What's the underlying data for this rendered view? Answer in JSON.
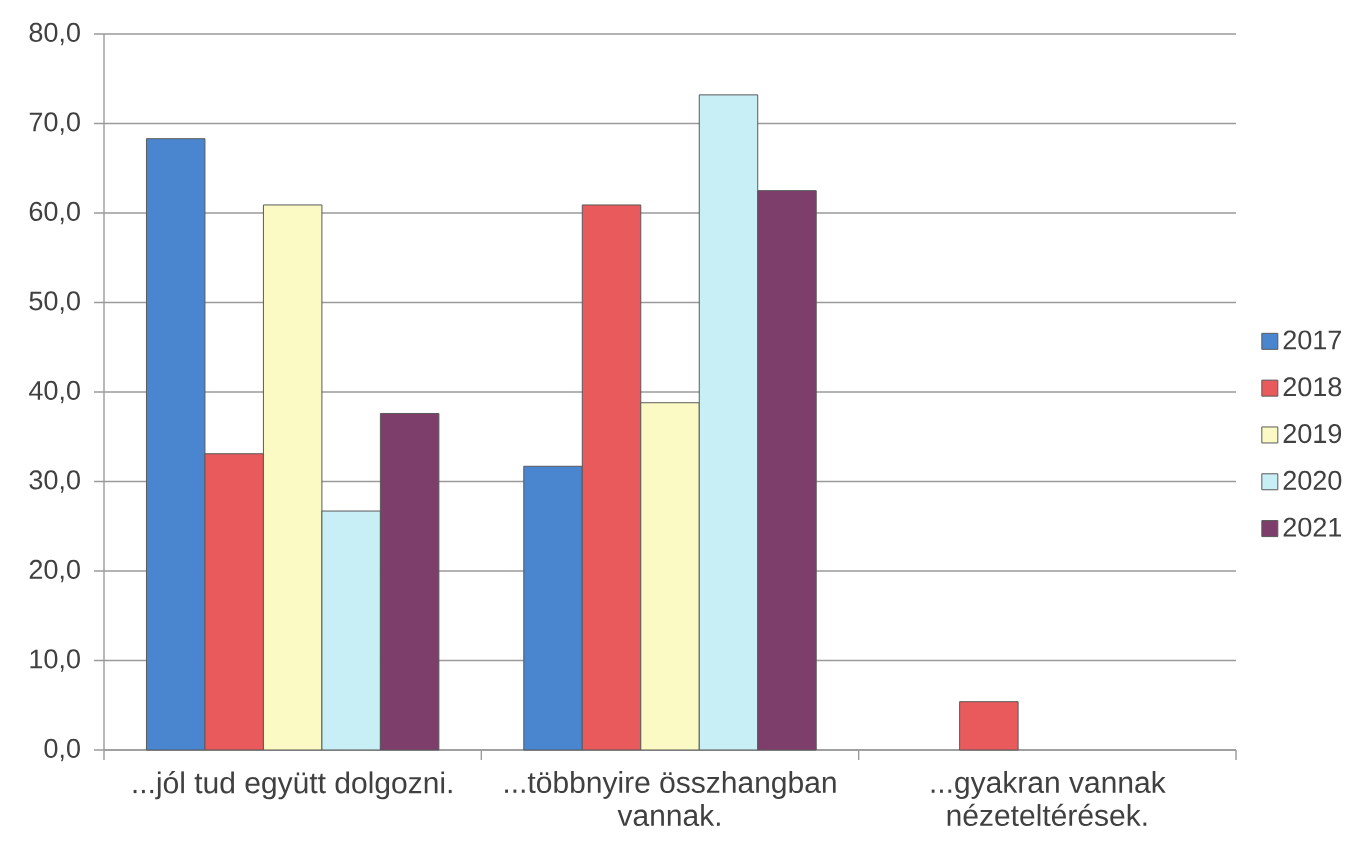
{
  "chart_data": {
    "type": "bar",
    "categories": [
      "...jól tud együtt dolgozni.",
      "...többnyire összhangban vannak.",
      "...gyakran vannak nézeteltérések."
    ],
    "series": [
      {
        "name": "2017",
        "color": "#4a86d0",
        "values": [
          68.3,
          31.7,
          null
        ]
      },
      {
        "name": "2018",
        "color": "#e85a5c",
        "values": [
          33.1,
          60.9,
          5.4
        ]
      },
      {
        "name": "2019",
        "color": "#fcfac4",
        "values": [
          60.9,
          38.8,
          null
        ]
      },
      {
        "name": "2020",
        "color": "#c8eef6",
        "values": [
          26.7,
          73.2,
          null
        ]
      },
      {
        "name": "2021",
        "color": "#7d3e6c",
        "values": [
          37.6,
          62.5,
          null
        ]
      }
    ],
    "ylim": [
      0,
      80
    ],
    "yticks": [
      {
        "value": 0,
        "label": "0,0"
      },
      {
        "value": 10,
        "label": "10,0"
      },
      {
        "value": 20,
        "label": "20,0"
      },
      {
        "value": 30,
        "label": "30,0"
      },
      {
        "value": 40,
        "label": "40,0"
      },
      {
        "value": 50,
        "label": "50,0"
      },
      {
        "value": 60,
        "label": "60,0"
      },
      {
        "value": 70,
        "label": "70,0"
      },
      {
        "value": 80,
        "label": "80,0"
      }
    ],
    "grid": "y",
    "legend": "right"
  }
}
